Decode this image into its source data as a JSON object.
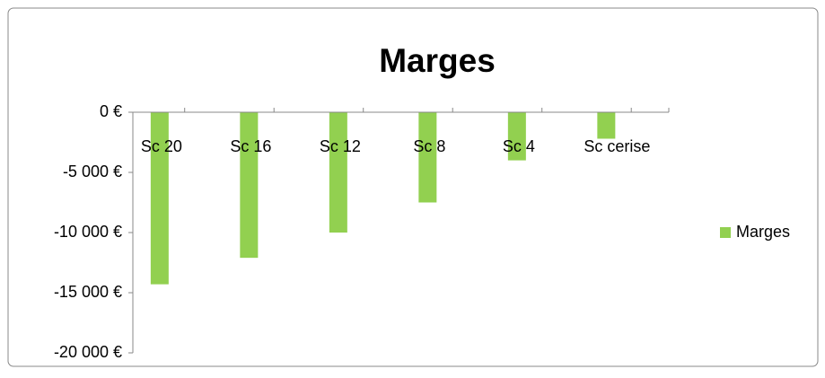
{
  "chart_data": {
    "type": "bar",
    "title": "Marges",
    "categories": [
      "Sc 20",
      "Sc 16",
      "Sc 12",
      "Sc 8",
      "Sc 4",
      "Sc cerise"
    ],
    "series": [
      {
        "name": "Marges",
        "color": "#92d050",
        "values": [
          -14300,
          -12100,
          -10000,
          -7500,
          -4000,
          -2200
        ]
      }
    ],
    "ylim": [
      -20000,
      0
    ],
    "yticks": [
      {
        "value": 0,
        "label": "0 €"
      },
      {
        "value": -5000,
        "label": "-5 000 €"
      },
      {
        "value": -10000,
        "label": "-10 000 €"
      },
      {
        "value": -15000,
        "label": "-15 000 €"
      },
      {
        "value": -20000,
        "label": "-20 000 €"
      }
    ],
    "legend": "right",
    "grid": false
  }
}
